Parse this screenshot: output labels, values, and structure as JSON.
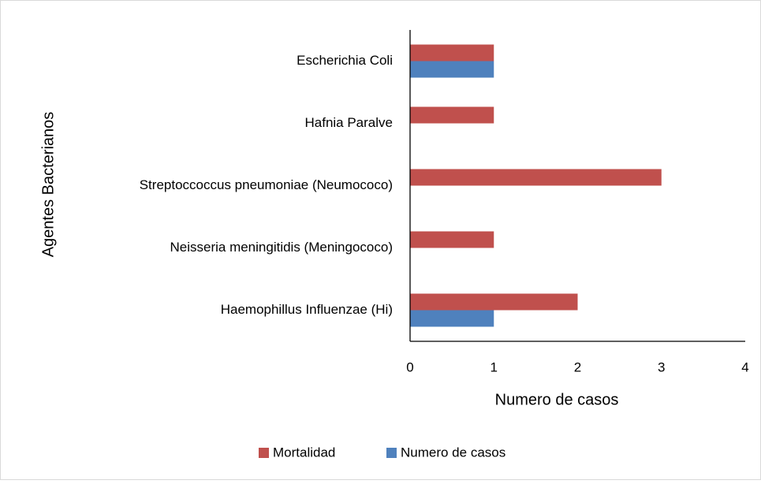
{
  "chart_data": {
    "type": "hbar",
    "categories": [
      "Escherichia Coli",
      "Hafnia Paralve",
      "Streptoccoccus pneumoniae (Neumococo)",
      "Neisseria meningitidis (Meningococo)",
      "Haemophillus Influenzae (Hi)"
    ],
    "series": [
      {
        "name": "Mortalidad",
        "color": "#c0504d",
        "values": [
          1,
          1,
          3,
          1,
          2
        ]
      },
      {
        "name": "Numero de casos",
        "color": "#4f81bd",
        "values": [
          1,
          0,
          0,
          0,
          1
        ]
      }
    ],
    "xlabel": "Numero de casos",
    "ylabel": "Agentes Bacterianos",
    "xlim": [
      0,
      4
    ],
    "xticks": [
      0,
      1,
      2,
      3,
      4
    ],
    "grid": false,
    "legend": "bottom"
  }
}
